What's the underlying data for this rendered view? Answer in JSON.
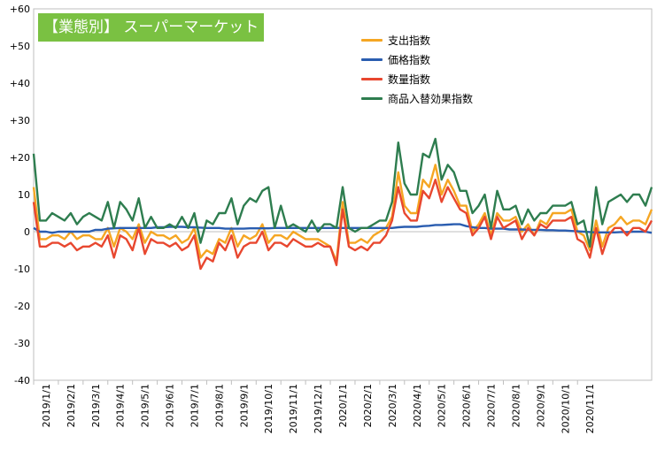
{
  "chart_data": {
    "type": "line",
    "title": "【業態別】 スーパーマーケット",
    "xlabel": "",
    "ylabel": "",
    "ylim": [
      -40,
      60
    ],
    "yticks": [
      60,
      50,
      40,
      30,
      20,
      10,
      0,
      -10,
      -20,
      -30,
      -40
    ],
    "ytick_labels": [
      "+60",
      "+50",
      "+40",
      "+30",
      "+20",
      "10",
      "0",
      "-10",
      "-20",
      "-30",
      "-40"
    ],
    "x_tick_labels": [
      "2019/1/1",
      "2019/2/1",
      "2019/3/1",
      "2019/4/1",
      "2019/5/1",
      "2019/6/1",
      "2019/7/1",
      "2019/8/1",
      "2019/9/1",
      "2019/10/1",
      "2019/11/1",
      "2019/12/1",
      "2020/1/1",
      "2020/2/1",
      "2020/3/1",
      "2020/4/1",
      "2020/5/1",
      "2020/6/1",
      "2020/7/1",
      "2020/8/1",
      "2020/9/1",
      "2020/10/1",
      "2020/11/1"
    ],
    "points_per_month": 4,
    "legend_position": "top-right",
    "grid": false,
    "series": [
      {
        "name": "支出指数",
        "color": "#f5a623",
        "values": [
          12,
          -2,
          -2,
          -1,
          -1,
          -2,
          0,
          -2,
          -1,
          -1,
          -2,
          -2,
          1,
          -4,
          1,
          0,
          -2,
          2,
          -3,
          0,
          -1,
          -1,
          -2,
          -1,
          -3,
          -2,
          1,
          -7,
          -5,
          -6,
          -2,
          -3,
          1,
          -4,
          -1,
          -2,
          -1,
          2,
          -3,
          -1,
          -1,
          -2,
          0,
          -1,
          -2,
          -2,
          -2,
          -3,
          -4,
          -8,
          8,
          -3,
          -3,
          -2,
          -3,
          -1,
          0,
          1,
          4,
          16,
          7,
          5,
          5,
          14,
          12,
          18,
          10,
          14,
          11,
          7,
          7,
          0,
          2,
          5,
          -1,
          5,
          3,
          3,
          4,
          0,
          2,
          -1,
          3,
          2,
          5,
          5,
          5,
          6,
          0,
          -1,
          -5,
          3,
          -4,
          1,
          2,
          4,
          2,
          3,
          3,
          2,
          6
        ]
      },
      {
        "name": "価格指数",
        "color": "#2a5db0",
        "values": [
          1,
          0,
          0,
          -0.3,
          0,
          0,
          0,
          0,
          0,
          0,
          0.5,
          0.5,
          0.8,
          0.9,
          1,
          1,
          1,
          1,
          1,
          1,
          1.2,
          1.2,
          1.3,
          1.3,
          1.3,
          1.2,
          1.2,
          1.1,
          1,
          1,
          1,
          0.8,
          0.8,
          0.8,
          0.8,
          0.9,
          0.9,
          0.9,
          0.9,
          1,
          1,
          1,
          1,
          1,
          1,
          1,
          1,
          1,
          1,
          1,
          1,
          1,
          1,
          1,
          1,
          1,
          1,
          1,
          1,
          1.2,
          1.3,
          1.3,
          1.3,
          1.5,
          1.6,
          1.8,
          1.8,
          1.9,
          2,
          2,
          1.5,
          1.2,
          1,
          1,
          0.8,
          0.8,
          0.8,
          0.6,
          0.6,
          0.6,
          0.5,
          0.5,
          0.5,
          0.4,
          0.4,
          0.3,
          0.3,
          0.2,
          0.1,
          0,
          -0.1,
          -0.2,
          -0.2,
          -0.2,
          -0.2,
          -0.1,
          -0.1,
          0,
          0,
          0,
          -0.3
        ]
      },
      {
        "name": "数量指数",
        "color": "#e8472f",
        "values": [
          8,
          -4,
          -4,
          -3,
          -3,
          -4,
          -3,
          -5,
          -4,
          -4,
          -3,
          -4,
          -1,
          -7,
          -1,
          -2,
          -5,
          1,
          -6,
          -2,
          -3,
          -3,
          -4,
          -3,
          -5,
          -4,
          -1,
          -10,
          -7,
          -8,
          -3,
          -5,
          -1,
          -7,
          -4,
          -3,
          -3,
          0,
          -5,
          -3,
          -3,
          -4,
          -2,
          -3,
          -4,
          -4,
          -3,
          -4,
          -4,
          -9,
          6,
          -4,
          -5,
          -4,
          -5,
          -3,
          -3,
          -1,
          3,
          12,
          5,
          3,
          3,
          11,
          9,
          14,
          8,
          12,
          9,
          6,
          5,
          -1,
          1,
          4,
          -2,
          4,
          1,
          2,
          3,
          -2,
          1,
          -1,
          2,
          1,
          3,
          3,
          3,
          4,
          -2,
          -3,
          -7,
          1,
          -6,
          -1,
          1,
          1,
          -1,
          1,
          1,
          0,
          3
        ]
      },
      {
        "name": "商品入替効果指数",
        "color": "#2e7d4f",
        "values": [
          21,
          3,
          3,
          5,
          4,
          3,
          5,
          2,
          4,
          5,
          4,
          3,
          8,
          1,
          8,
          6,
          3,
          9,
          1,
          4,
          1,
          1,
          2,
          1,
          4,
          1,
          5,
          -3,
          3,
          2,
          5,
          5,
          9,
          2,
          7,
          9,
          8,
          11,
          12,
          1,
          7,
          1,
          2,
          1,
          0,
          3,
          0,
          2,
          2,
          1,
          12,
          1,
          0,
          1,
          1,
          2,
          3,
          3,
          8,
          24,
          13,
          10,
          10,
          21,
          20,
          25,
          14,
          18,
          16,
          11,
          11,
          5,
          7,
          10,
          1,
          11,
          6,
          6,
          7,
          2,
          6,
          3,
          5,
          5,
          7,
          7,
          7,
          8,
          2,
          3,
          -4,
          12,
          2,
          8,
          9,
          10,
          8,
          10,
          10,
          7,
          12
        ]
      }
    ]
  }
}
